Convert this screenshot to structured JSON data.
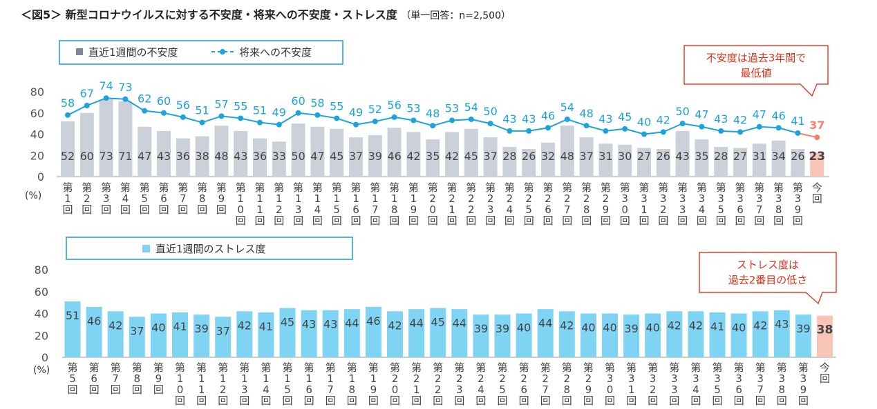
{
  "title": "＜図5＞ 新型コロナウイルスに対する不安度・将来への不安度・ストレス度",
  "title_note": "（単一回答：n=2,500）",
  "colors": {
    "bar_gray": "#cbd0d9",
    "bar_blue": "#7fd4f4",
    "line_blue": "#1aa3dc",
    "highlight": "#f4826a",
    "highlight_bar": "#f8c4b6",
    "callout_border": "#e0442a"
  },
  "chart_data": [
    {
      "type": "bar",
      "title": "",
      "ylabel": "(%)",
      "ylim": [
        0,
        80
      ],
      "yticks": [
        0,
        20,
        40,
        60,
        80
      ],
      "categories": [
        "第1回",
        "第2回",
        "第3回",
        "第4回",
        "第5回",
        "第6回",
        "第7回",
        "第8回",
        "第9回",
        "第10回",
        "第11回",
        "第12回",
        "第13回",
        "第14回",
        "第15回",
        "第16回",
        "第17回",
        "第18回",
        "第19回",
        "第20回",
        "第21回",
        "第22回",
        "第23回",
        "第24回",
        "第25回",
        "第26回",
        "第27回",
        "第28回",
        "第29回",
        "第30回",
        "第31回",
        "第32回",
        "第33回",
        "第34回",
        "第35回",
        "第36回",
        "第37回",
        "第38回",
        "第39回",
        "今回"
      ],
      "series": [
        {
          "name": "直近1週間の不安度",
          "kind": "bar",
          "values": [
            52,
            60,
            73,
            71,
            47,
            43,
            36,
            38,
            48,
            43,
            36,
            33,
            50,
            47,
            45,
            37,
            39,
            46,
            42,
            35,
            42,
            45,
            37,
            28,
            26,
            32,
            48,
            37,
            31,
            30,
            27,
            26,
            43,
            35,
            28,
            27,
            31,
            34,
            26,
            23
          ]
        },
        {
          "name": "将来への不安度",
          "kind": "line",
          "values": [
            58,
            67,
            74,
            73,
            62,
            60,
            56,
            51,
            57,
            55,
            51,
            49,
            60,
            58,
            55,
            49,
            52,
            56,
            53,
            48,
            53,
            54,
            50,
            43,
            43,
            46,
            54,
            48,
            43,
            45,
            40,
            42,
            50,
            47,
            43,
            42,
            47,
            46,
            41,
            37
          ]
        }
      ],
      "legend": [
        "直近1週間の不安度",
        "将来への不安度"
      ],
      "callout": "不安度は過去3年間で\n最低値"
    },
    {
      "type": "bar",
      "title": "",
      "ylabel": "(%)",
      "ylim": [
        0,
        80
      ],
      "yticks": [
        0,
        20,
        40,
        60,
        80
      ],
      "categories": [
        "第5回",
        "第6回",
        "第7回",
        "第8回",
        "第9回",
        "第10回",
        "第11回",
        "第12回",
        "第13回",
        "第14回",
        "第15回",
        "第16回",
        "第17回",
        "第18回",
        "第19回",
        "第20回",
        "第21回",
        "第22回",
        "第23回",
        "第24回",
        "第25回",
        "第26回",
        "第27回",
        "第28回",
        "第29回",
        "第30回",
        "第31回",
        "第32回",
        "第33回",
        "第34回",
        "第35回",
        "第36回",
        "第37回",
        "第38回",
        "第39回",
        "今回"
      ],
      "series": [
        {
          "name": "直近1週間のストレス度",
          "kind": "bar",
          "values": [
            51,
            46,
            42,
            37,
            40,
            41,
            39,
            37,
            42,
            41,
            45,
            43,
            43,
            44,
            46,
            42,
            44,
            45,
            44,
            39,
            39,
            40,
            44,
            42,
            40,
            40,
            39,
            40,
            42,
            42,
            41,
            40,
            42,
            43,
            39,
            38
          ]
        }
      ],
      "legend": [
        "直近1週間のストレス度"
      ],
      "callout": "ストレス度は\n過去2番目の低さ"
    }
  ]
}
